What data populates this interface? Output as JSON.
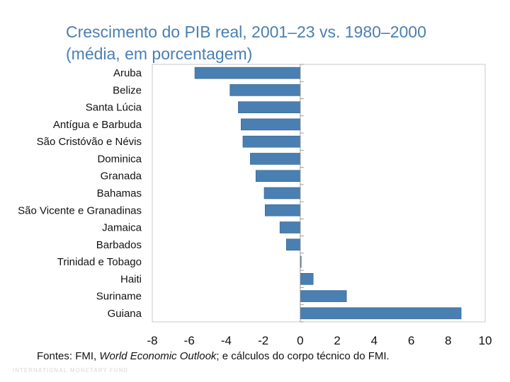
{
  "title_line1": "Crescimento do PIB real, 2001–23 vs. 1980–2000",
  "title_line2": "(média, em porcentagem)",
  "source": {
    "prefix": "Fontes: FMI, ",
    "italic": "World Economic Outlook",
    "suffix": "; e cálculos do corpo técnico do FMI."
  },
  "footer_mark": "INTERNATIONAL MONETARY FUND",
  "colors": {
    "bar": "#4a7fb2",
    "bar_border": "#2f5f8f",
    "title": "#4a7fb2"
  },
  "chart_data": {
    "type": "bar",
    "orientation": "horizontal",
    "categories": [
      "Aruba",
      "Belize",
      "Santa Lúcia",
      "Antígua e Barbuda",
      "São Cristóvão e Névis",
      "Dominica",
      "Granada",
      "Bahamas",
      "São Vicente e Granadinas",
      "Jamaica",
      "Barbados",
      "Trinidad e Tobago",
      "Haiti",
      "Suriname",
      "Guiana"
    ],
    "values": [
      -5.7,
      -3.8,
      -3.35,
      -3.2,
      -3.1,
      -2.7,
      -2.4,
      -1.95,
      -1.9,
      -1.1,
      -0.75,
      0.05,
      0.7,
      2.5,
      8.7
    ],
    "xlim": [
      -8,
      10
    ],
    "xticks": [
      -8,
      -6,
      -4,
      -2,
      0,
      2,
      4,
      6,
      8,
      10
    ],
    "grid": false
  }
}
